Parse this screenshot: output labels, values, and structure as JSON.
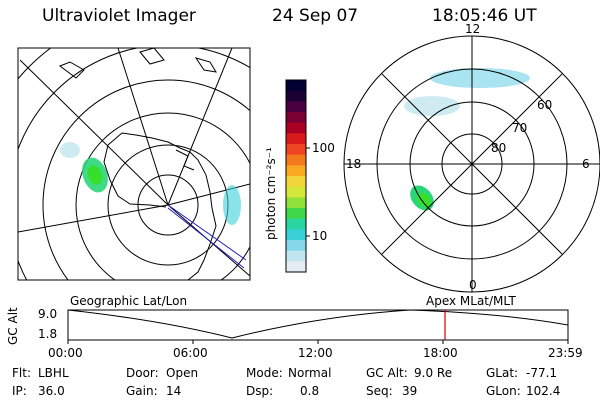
{
  "header": {
    "instrument": "Ultraviolet Imager",
    "date": "24 Sep 07",
    "time": "18:05:46 UT"
  },
  "colorbar": {
    "unit_label": "photon cm⁻²s⁻¹",
    "ticks": [
      "100",
      "10"
    ],
    "colors": [
      "#000033",
      "#1a0033",
      "#4a0040",
      "#7a0033",
      "#aa0022",
      "#d81a1a",
      "#ee4422",
      "#f57a1e",
      "#f9a820",
      "#f2d53a",
      "#d4e83a",
      "#8fe03a",
      "#3fd848",
      "#2ad6a0",
      "#3ad0d8",
      "#84d8ea",
      "#c2e6ef",
      "#e4eef2"
    ]
  },
  "left_map": {
    "caption": "Geographic Lat/Lon",
    "fill": "#2ad67a"
  },
  "right_map": {
    "caption": "Apex  MLat/MLT",
    "mlt_labels": {
      "top": "12",
      "bottom": "0",
      "left": "18",
      "right": "6"
    },
    "lat_labels": [
      "60",
      "70",
      "80"
    ],
    "fill": "#2ad67a"
  },
  "altitude_plot": {
    "axis_label": "GC Alt",
    "y_ticks": [
      "9.0",
      "1.8"
    ],
    "x_ticks": [
      "00:00",
      "06:00",
      "12:00",
      "18:00",
      "23:59"
    ],
    "current_marker_color": "#cc0000"
  },
  "status": {
    "row1": [
      {
        "label": "Flt:",
        "value": "LBHL"
      },
      {
        "label": "Door:",
        "value": "Open"
      },
      {
        "label": "Mode:",
        "value": "Normal"
      },
      {
        "label": "GC Alt:",
        "value": "9.0 Re"
      },
      {
        "label": "GLat:",
        "value": "-77.1"
      }
    ],
    "row2": [
      {
        "label": "IP:",
        "value": "36.0"
      },
      {
        "label": "Gain:",
        "value": "14"
      },
      {
        "label": "Dsp:",
        "value": "0.8"
      },
      {
        "label": "Seq:",
        "value": "39"
      },
      {
        "label": "GLon:",
        "value": "102.4"
      }
    ]
  }
}
